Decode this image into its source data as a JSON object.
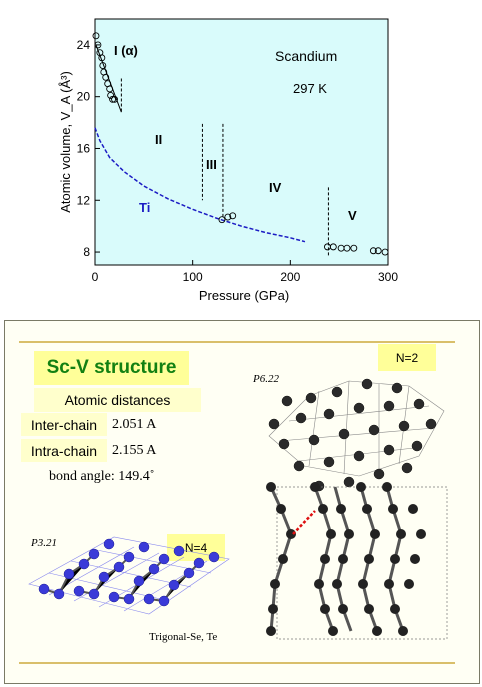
{
  "chart_data": {
    "type": "scatter",
    "ylabel": "Atomic volume, V_A (Å³)",
    "xlabel": "Pressure  (GPa)",
    "xlim": [
      0,
      300
    ],
    "ylim": [
      7,
      26
    ],
    "x_ticks": [
      0,
      100,
      200,
      300
    ],
    "y_ticks": [
      8,
      12,
      16,
      20,
      24
    ],
    "grid": false,
    "series": [
      {
        "name": "",
        "style": "open-circles",
        "points": [
          [
            1,
            24.7
          ],
          [
            3,
            24.0
          ],
          [
            5,
            23.4
          ],
          [
            7,
            23.0
          ],
          [
            8,
            22.4
          ],
          [
            9,
            21.9
          ],
          [
            11,
            21.5
          ],
          [
            13,
            21.0
          ],
          [
            15,
            20.6
          ],
          [
            16,
            20.1
          ],
          [
            18,
            19.8
          ],
          [
            20,
            19.8
          ],
          [
            130,
            10.5
          ],
          [
            136,
            10.7
          ],
          [
            141,
            10.8
          ],
          [
            238,
            8.4
          ],
          [
            244,
            8.4
          ],
          [
            252,
            8.3
          ],
          [
            258,
            8.3
          ],
          [
            265,
            8.3
          ],
          [
            285,
            8.1
          ],
          [
            290,
            8.1
          ],
          [
            297,
            8.0
          ]
        ]
      },
      {
        "name": "",
        "style": "solid-line",
        "points": [
          [
            1,
            24.0
          ],
          [
            27,
            18.8
          ]
        ]
      },
      {
        "name": "Ti",
        "style": "dashed-line",
        "color": "#1c1cc4",
        "points": [
          [
            0,
            17.6
          ],
          [
            5,
            16.6
          ],
          [
            15,
            15.3
          ],
          [
            30,
            14.2
          ],
          [
            50,
            13.1
          ],
          [
            75,
            12.1
          ],
          [
            100,
            11.3
          ],
          [
            125,
            10.6
          ],
          [
            150,
            10.0
          ],
          [
            175,
            9.5
          ],
          [
            200,
            9.1
          ],
          [
            215,
            8.8
          ]
        ]
      }
    ],
    "phase_boundaries": [
      27,
      110,
      131,
      239
    ],
    "annotations": {
      "element": "Scandium",
      "temperature": "297 K",
      "series_label": "Ti",
      "phases": [
        "I (α)",
        "II",
        "III",
        "IV",
        "V"
      ]
    },
    "plot_background": "#d9fbfb"
  },
  "panel": {
    "title": "Sc-V structure",
    "atomic_distances": "Atomic distances",
    "inter_chain_label": "Inter-chain",
    "inter_chain_value": "2.051 A",
    "intra_chain_label": "Intra-chain",
    "intra_chain_value": "2.155 A",
    "bond_angle": "bond angle: 149.4˚",
    "sg1": "P6.22",
    "n1": "N=2",
    "sg2": "P3.21",
    "n2": "N=4",
    "caption": "Trigonal-Se, Te",
    "colors": {
      "title_bg": "#ffff99",
      "title_text": "#128012",
      "label_bg": "#ffffcc",
      "atom_blue": "#3a3ad8",
      "atom_dark": "#222222"
    }
  }
}
